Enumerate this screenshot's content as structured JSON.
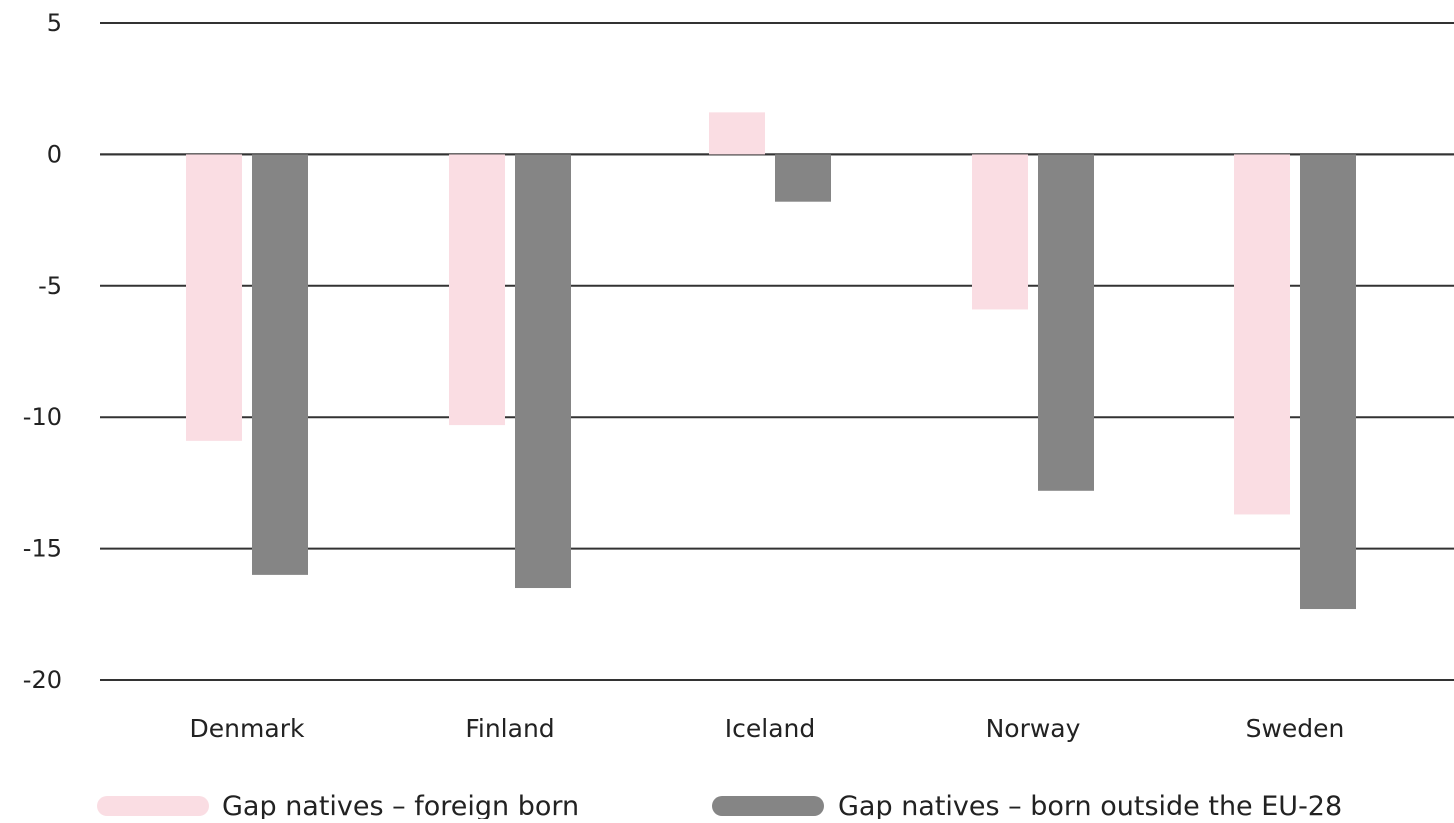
{
  "chart_data": {
    "type": "bar",
    "title": "",
    "xlabel": "",
    "ylabel": "",
    "categories": [
      "Denmark",
      "Finland",
      "Iceland",
      "Norway",
      "Sweden"
    ],
    "series": [
      {
        "name": "Gap natives – foreign born",
        "color": "#fadde3",
        "values": [
          -10.9,
          -10.3,
          1.6,
          -5.9,
          -13.7
        ]
      },
      {
        "name": "Gap natives – born outside the EU-28",
        "color": "#858585",
        "values": [
          -16.0,
          -16.5,
          -1.8,
          -12.8,
          -17.3
        ]
      }
    ],
    "ylim": [
      -20,
      5
    ],
    "yticks": [
      5,
      0,
      -5,
      -10,
      -15,
      -20
    ],
    "ytick_labels": [
      "5",
      "0",
      "-5",
      "-10",
      "-15",
      "-20"
    ],
    "grid": true,
    "legend_position": "bottom"
  }
}
